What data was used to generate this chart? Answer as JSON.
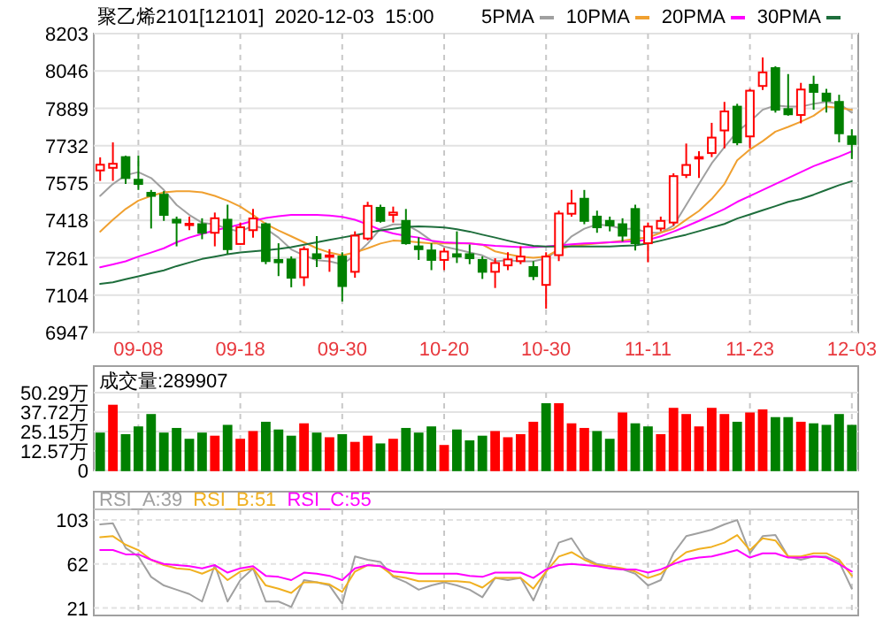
{
  "chart_data": [
    {
      "type": "candlestick",
      "title": "聚乙烯2101[12101]  2020-12-03  15:00",
      "legend": "top right",
      "grid": true,
      "categories": [
        null,
        null,
        null,
        "09-08",
        null,
        null,
        null,
        null,
        null,
        null,
        null,
        "09-18",
        null,
        null,
        null,
        null,
        null,
        null,
        null,
        "09-30",
        null,
        null,
        null,
        null,
        null,
        null,
        null,
        "10-20",
        null,
        null,
        null,
        null,
        null,
        null,
        null,
        "10-30",
        null,
        null,
        null,
        null,
        null,
        null,
        null,
        "11-11",
        null,
        null,
        null,
        null,
        null,
        null,
        null,
        "11-23",
        null,
        null,
        null,
        null,
        null,
        null,
        null,
        "12-03"
      ],
      "ylim": [
        6947,
        8203
      ],
      "yticks": [
        6947,
        7104,
        7261,
        7418,
        7575,
        7732,
        7889,
        8046,
        8203
      ],
      "ohlc": [
        [
          7628,
          7683,
          7584,
          7652
        ],
        [
          7639,
          7746,
          7584,
          7656
        ],
        [
          7684,
          7690,
          7571,
          7596
        ],
        [
          7589,
          7690,
          7546,
          7571
        ],
        [
          7534,
          7546,
          7384,
          7521
        ],
        [
          7526,
          7541,
          7416,
          7441
        ],
        [
          7421,
          7434,
          7309,
          7409
        ],
        [
          7399,
          7434,
          7377,
          7404
        ],
        [
          7402,
          7427,
          7339,
          7366
        ],
        [
          7366,
          7451,
          7309,
          7427
        ],
        [
          7421,
          7484,
          7277,
          7297
        ],
        [
          7319,
          7409,
          7316,
          7389
        ],
        [
          7377,
          7466,
          7346,
          7426
        ],
        [
          7402,
          7409,
          7234,
          7247
        ],
        [
          7252,
          7322,
          7184,
          7242
        ],
        [
          7254,
          7267,
          7137,
          7177
        ],
        [
          7179,
          7309,
          7142,
          7297
        ],
        [
          7276,
          7352,
          7222,
          7259
        ],
        [
          7266,
          7297,
          7202,
          7271
        ],
        [
          7266,
          7284,
          7077,
          7142
        ],
        [
          7202,
          7372,
          7177,
          7354
        ],
        [
          7342,
          7496,
          7334,
          7479
        ],
        [
          7471,
          7484,
          7409,
          7416
        ],
        [
          7441,
          7476,
          7409,
          7451
        ],
        [
          7416,
          7466,
          7316,
          7322
        ],
        [
          7309,
          7347,
          7252,
          7297
        ],
        [
          7292,
          7322,
          7209,
          7252
        ],
        [
          7252,
          7302,
          7209,
          7287
        ],
        [
          7276,
          7372,
          7239,
          7266
        ],
        [
          7276,
          7317,
          7234,
          7259
        ],
        [
          7252,
          7267,
          7172,
          7202
        ],
        [
          7202,
          7259,
          7134,
          7239
        ],
        [
          7229,
          7284,
          7209,
          7254
        ],
        [
          7247,
          7309,
          7234,
          7266
        ],
        [
          7222,
          7247,
          7167,
          7184
        ],
        [
          7147,
          7284,
          7047,
          7266
        ],
        [
          7272,
          7459,
          7247,
          7447
        ],
        [
          7446,
          7546,
          7434,
          7489
        ],
        [
          7509,
          7546,
          7402,
          7416
        ],
        [
          7434,
          7459,
          7366,
          7389
        ],
        [
          7416,
          7434,
          7372,
          7397
        ],
        [
          7402,
          7427,
          7329,
          7354
        ],
        [
          7466,
          7484,
          7292,
          7322
        ],
        [
          7322,
          7409,
          7242,
          7392
        ],
        [
          7384,
          7434,
          7372,
          7416
        ],
        [
          7409,
          7616,
          7396,
          7604
        ],
        [
          7609,
          7741,
          7596,
          7651
        ],
        [
          7679,
          7709,
          7596,
          7684
        ],
        [
          7701,
          7828,
          7684,
          7766
        ],
        [
          7796,
          7916,
          7721,
          7876
        ],
        [
          7896,
          7908,
          7734,
          7746
        ],
        [
          7771,
          7971,
          7721,
          7963
        ],
        [
          7983,
          8103,
          7966,
          8040
        ],
        [
          8058,
          8066,
          7871,
          7883
        ],
        [
          7886,
          8033,
          7858,
          7864
        ],
        [
          7861,
          7996,
          7826,
          7968
        ],
        [
          7988,
          8026,
          7883,
          7958
        ],
        [
          7951,
          7971,
          7871,
          7921
        ],
        [
          7916,
          7946,
          7746,
          7784
        ],
        [
          7771,
          7801,
          7676,
          7739
        ]
      ],
      "series": [
        {
          "type": "line",
          "name": "5PMA",
          "color": "#a0a0a0",
          "values": [
            7521,
            7571,
            7608,
            7621,
            7596,
            7546,
            7483,
            7441,
            7408,
            7401,
            7383,
            7371,
            7396,
            7383,
            7346,
            7296,
            7271,
            7251,
            7246,
            7233,
            7271,
            7321,
            7383,
            7401,
            7401,
            7371,
            7333,
            7308,
            7296,
            7283,
            7271,
            7246,
            7251,
            7246,
            7246,
            7258,
            7296,
            7351,
            7383,
            7401,
            7396,
            7383,
            7383,
            7366,
            7366,
            7396,
            7483,
            7571,
            7658,
            7726,
            7791,
            7833,
            7883,
            7901,
            7896,
            7896,
            7908,
            7916,
            7908,
            7871
          ]
        },
        {
          "type": "line",
          "name": "10PMA",
          "color": "#f0a030",
          "values": [
            7371,
            7421,
            7466,
            7501,
            7521,
            7536,
            7541,
            7541,
            7536,
            7521,
            7501,
            7476,
            7441,
            7403,
            7376,
            7351,
            7326,
            7301,
            7283,
            7271,
            7283,
            7301,
            7321,
            7333,
            7331,
            7326,
            7321,
            7321,
            7321,
            7321,
            7316,
            7288,
            7276,
            7266,
            7261,
            7266,
            7296,
            7311,
            7316,
            7321,
            7326,
            7333,
            7341,
            7346,
            7366,
            7383,
            7421,
            7458,
            7508,
            7571,
            7671,
            7716,
            7751,
            7791,
            7811,
            7833,
            7858,
            7896,
            7891,
            7883
          ]
        },
        {
          "type": "line",
          "name": "20PMA",
          "color": "#ff00ff",
          "values": [
            7221,
            7233,
            7246,
            7266,
            7283,
            7301,
            7326,
            7346,
            7361,
            7376,
            7388,
            7401,
            7416,
            7428,
            7436,
            7441,
            7441,
            7441,
            7438,
            7433,
            7421,
            7401,
            7378,
            7363,
            7353,
            7346,
            7333,
            7326,
            7323,
            7321,
            7316,
            7311,
            7308,
            7306,
            7306,
            7308,
            7313,
            7318,
            7321,
            7323,
            7326,
            7328,
            7331,
            7336,
            7351,
            7371,
            7393,
            7416,
            7441,
            7466,
            7496,
            7521,
            7546,
            7571,
            7596,
            7621,
            7646,
            7666,
            7686,
            7708
          ]
        },
        {
          "type": "line",
          "name": "30PMA",
          "color": "#1e6e3c",
          "values": [
            7151,
            7158,
            7171,
            7183,
            7196,
            7208,
            7226,
            7241,
            7256,
            7266,
            7276,
            7283,
            7288,
            7293,
            7298,
            7306,
            7316,
            7326,
            7336,
            7346,
            7356,
            7366,
            7376,
            7383,
            7391,
            7393,
            7391,
            7388,
            7381,
            7371,
            7358,
            7346,
            7333,
            7321,
            7311,
            7308,
            7308,
            7308,
            7308,
            7308,
            7308,
            7311,
            7313,
            7321,
            7333,
            7346,
            7358,
            7373,
            7388,
            7403,
            7426,
            7443,
            7461,
            7478,
            7496,
            7508,
            7526,
            7546,
            7566,
            7583
          ]
        }
      ]
    },
    {
      "type": "bar",
      "title": "成交量:289907",
      "grid": true,
      "categories": [
        null,
        null,
        null,
        null,
        null,
        null,
        null,
        null,
        null,
        null,
        null,
        null,
        null,
        null,
        null,
        null,
        null,
        null,
        null,
        null,
        null,
        null,
        null,
        null,
        null,
        null,
        null,
        null,
        null,
        null,
        null,
        null,
        null,
        null,
        null,
        null,
        null,
        null,
        null,
        null,
        null,
        null,
        null,
        null,
        null,
        null,
        null,
        null,
        null,
        null,
        null,
        null,
        null,
        null,
        null,
        null,
        null,
        null,
        null,
        null
      ],
      "ylim": [
        0,
        50.29
      ],
      "yticks": [
        0,
        {
          "value": 12.57,
          "label": "12.57万"
        },
        {
          "value": 25.15,
          "label": "25.15万"
        },
        {
          "value": 37.72,
          "label": "37.72万"
        },
        {
          "value": 50.29,
          "label": "50.29万"
        }
      ],
      "values": [
        24,
        42,
        23,
        28,
        36,
        24,
        27,
        20,
        24,
        22,
        29,
        20,
        25,
        31,
        26,
        22,
        30,
        24,
        21,
        23,
        18,
        22,
        17,
        20,
        27,
        24,
        28,
        16,
        26,
        19,
        22,
        25,
        21,
        23,
        31,
        43,
        43,
        30,
        27,
        25,
        20,
        37,
        30,
        28,
        23,
        40,
        36,
        28,
        40,
        36,
        31,
        37,
        39,
        34,
        34,
        31,
        30,
        29,
        36,
        29
      ],
      "colors": [
        "#008000",
        "#ff0000",
        "#008000",
        "#008000",
        "#008000",
        "#008000",
        "#008000",
        "#008000",
        "#008000",
        "#ff0000",
        "#008000",
        "#ff0000",
        "#ff0000",
        "#008000",
        "#008000",
        "#008000",
        "#ff0000",
        "#008000",
        "#ff0000",
        "#008000",
        "#ff0000",
        "#ff0000",
        "#008000",
        "#ff0000",
        "#008000",
        "#008000",
        "#008000",
        "#ff0000",
        "#008000",
        "#008000",
        "#008000",
        "#ff0000",
        "#ff0000",
        "#ff0000",
        "#ff0000",
        "#008000",
        "#ff0000",
        "#ff0000",
        "#ff0000",
        "#008000",
        "#008000",
        "#ff0000",
        "#008000",
        "#008000",
        "#ff0000",
        "#ff0000",
        "#ff0000",
        "#ff0000",
        "#ff0000",
        "#ff0000",
        "#008000",
        "#ff0000",
        "#ff0000",
        "#008000",
        "#008000",
        "#ff0000",
        "#008000",
        "#008000",
        "#008000",
        "#008000"
      ]
    },
    {
      "type": "line",
      "legend": "top left",
      "grid": true,
      "categories": [
        null,
        null,
        null,
        null,
        null,
        null,
        null,
        null,
        null,
        null,
        null,
        null,
        null,
        null,
        null,
        null,
        null,
        null,
        null,
        null,
        null,
        null,
        null,
        null,
        null,
        null,
        null,
        null,
        null,
        null,
        null,
        null,
        null,
        null,
        null,
        null,
        null,
        null,
        null,
        null,
        null,
        null,
        null,
        null,
        null,
        null,
        null,
        null,
        null,
        null,
        null,
        null,
        null,
        null,
        null,
        null,
        null,
        null,
        null,
        null
      ],
      "ylim": [
        14,
        113
      ],
      "yticks": [
        21,
        62,
        103
      ],
      "series": [
        {
          "name": "RSI_A:39",
          "color": "#a0a0a0",
          "values": [
            99,
            100,
            77,
            69,
            50,
            42,
            38,
            34,
            27,
            61,
            27,
            47,
            58,
            27,
            27,
            22,
            47,
            45,
            42,
            25,
            69,
            66,
            64,
            50,
            45,
            38,
            42,
            45,
            42,
            38,
            31,
            49,
            47,
            49,
            28,
            55,
            82,
            86,
            68,
            62,
            60,
            57,
            53,
            42,
            47,
            72,
            88,
            91,
            94,
            99,
            103,
            72,
            88,
            89,
            69,
            66,
            69,
            69,
            64,
            39
          ]
        },
        {
          "name": "RSI_B:51",
          "color": "#f0b020",
          "values": [
            87,
            88,
            80,
            75,
            66,
            61,
            58,
            57,
            53,
            58,
            47,
            55,
            58,
            42,
            39,
            35,
            45,
            45,
            43,
            36,
            55,
            61,
            60,
            51,
            49,
            46,
            46,
            46,
            46,
            45,
            40,
            49,
            49,
            49,
            39,
            55,
            69,
            73,
            66,
            61,
            60,
            58,
            55,
            49,
            53,
            64,
            73,
            76,
            78,
            82,
            89,
            75,
            86,
            84,
            69,
            69,
            72,
            72,
            66,
            51
          ]
        },
        {
          "name": "RSI_C:55",
          "color": "#ff00ff",
          "values": [
            75,
            75,
            71,
            71,
            66,
            62,
            61,
            60,
            58,
            61,
            54,
            58,
            60,
            51,
            50,
            47,
            54,
            53,
            51,
            47,
            58,
            61,
            60,
            55,
            54,
            53,
            53,
            53,
            53,
            51,
            50,
            54,
            54,
            54,
            49,
            57,
            61,
            62,
            61,
            60,
            58,
            57,
            57,
            54,
            57,
            62,
            66,
            68,
            69,
            72,
            75,
            68,
            72,
            72,
            68,
            68,
            69,
            68,
            62,
            55
          ]
        }
      ]
    }
  ]
}
